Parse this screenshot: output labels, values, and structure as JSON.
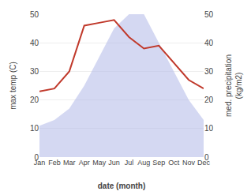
{
  "chart_data": {
    "type": "line",
    "categories": [
      "Jan",
      "Feb",
      "Mar",
      "Apr",
      "May",
      "Jun",
      "Jul",
      "Aug",
      "Sep",
      "Oct",
      "Nov",
      "Dec"
    ],
    "series": [
      {
        "type": "area",
        "color": "#b0b8e8",
        "values": [
          11,
          13,
          17,
          25,
          35,
          45,
          50,
          50,
          40,
          30,
          20,
          13
        ]
      },
      {
        "type": "line",
        "color": "#c0392b",
        "axis": "y2",
        "values": [
          23,
          24,
          30,
          46,
          47,
          48,
          42,
          38,
          39,
          33,
          27,
          24
        ]
      }
    ],
    "xlabel": "date (month)",
    "ylabel": "max temp (C)",
    "y2label": "med. precipitation\n(kg/m2)",
    "ylim": [
      0,
      50
    ],
    "yticks": [
      0,
      10,
      20,
      30,
      40,
      50
    ],
    "y2lim": [
      0,
      50
    ],
    "y2ticks": [
      0,
      10,
      20,
      30,
      40,
      50
    ],
    "grid": true
  }
}
